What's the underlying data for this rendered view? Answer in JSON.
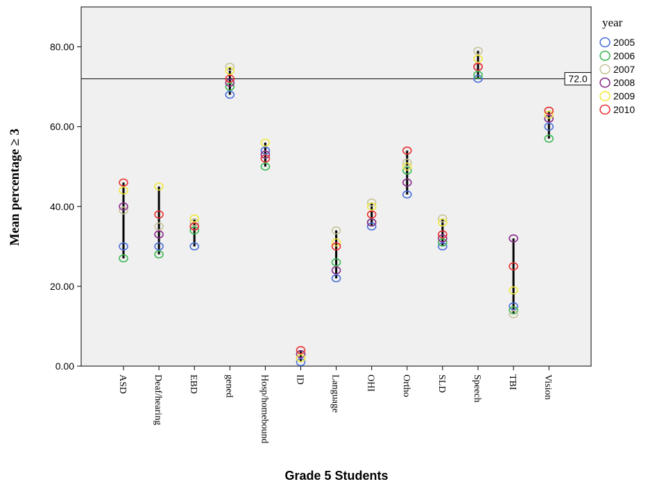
{
  "chart_data": {
    "type": "scatter",
    "title": "",
    "xlabel": "Grade 5 Students",
    "ylabel": "Mean percentage ≥ 3",
    "ylim": [
      0,
      90
    ],
    "yticks": [
      0,
      20,
      40,
      60,
      80
    ],
    "ytick_labels": [
      "0.00",
      "20.00",
      "40.00",
      "60.00",
      "80.00"
    ],
    "grid": false,
    "legend_title": "year",
    "legend_position": "right",
    "categories": [
      "ASD",
      "Deaf/hearing",
      "EBD",
      "gened",
      "Hosp/homebound",
      "ID",
      "Language",
      "OHI",
      "Ortho",
      "SLD",
      "Speech",
      "TBI",
      "Vision"
    ],
    "reference_line": {
      "value": 72.0,
      "label": "72.0"
    },
    "series": [
      {
        "name": "2005",
        "color": "#4a6fd8",
        "values": [
          30,
          30,
          30,
          68,
          54,
          1,
          22,
          35,
          43,
          30,
          72,
          15,
          60
        ]
      },
      {
        "name": "2006",
        "color": "#3cb854",
        "values": [
          27,
          28,
          34,
          70,
          50,
          3,
          26,
          36,
          49,
          31,
          73,
          14,
          57
        ]
      },
      {
        "name": "2007",
        "color": "#c8c49a",
        "values": [
          39,
          35,
          36,
          75,
          53,
          2,
          34,
          41,
          51,
          37,
          79,
          13,
          62
        ]
      },
      {
        "name": "2008",
        "color": "#8a2a8a",
        "values": [
          40,
          33,
          35,
          71,
          53,
          3,
          24,
          36,
          46,
          32,
          75,
          32,
          62
        ]
      },
      {
        "name": "2009",
        "color": "#f0e840",
        "values": [
          44,
          45,
          37,
          74,
          56,
          2,
          31,
          40,
          50,
          36,
          77,
          19,
          63
        ]
      },
      {
        "name": "2010",
        "color": "#e83030",
        "values": [
          46,
          38,
          35,
          72,
          52,
          4,
          30,
          38,
          54,
          33,
          75,
          25,
          64
        ]
      }
    ]
  }
}
